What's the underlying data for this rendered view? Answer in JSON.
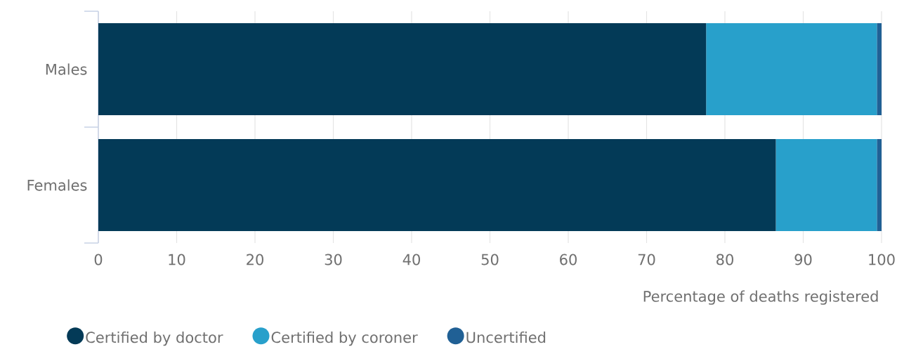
{
  "chart_data": {
    "type": "bar",
    "orientation": "horizontal",
    "stacked": true,
    "categories": [
      "Males",
      "Females"
    ],
    "series": [
      {
        "name": "Certified by doctor",
        "color": "#033a57",
        "values": [
          77.6,
          86.5
        ]
      },
      {
        "name": "Certified by coroner",
        "color": "#28a0cb",
        "values": [
          21.8,
          12.9
        ]
      },
      {
        "name": "Uncertified",
        "color": "#206095",
        "values": [
          0.6,
          0.6
        ]
      }
    ],
    "xlabel": "Percentage of deaths registered",
    "xlim": [
      0,
      100
    ],
    "xticks": [
      0,
      10,
      20,
      30,
      40,
      50,
      60,
      70,
      80,
      90,
      100
    ],
    "grid": "x",
    "legend": "bottom"
  }
}
